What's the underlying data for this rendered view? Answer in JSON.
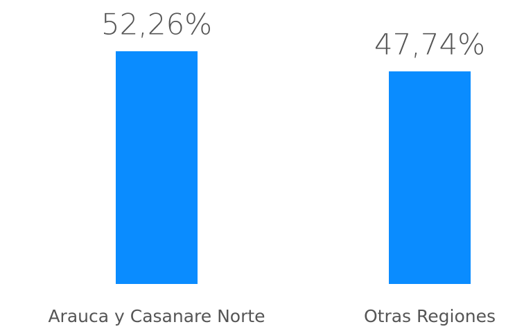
{
  "chart_data": {
    "type": "bar",
    "categories": [
      "Arauca y Casanare Norte",
      "Otras Regiones"
    ],
    "values": [
      52.26,
      47.74
    ],
    "value_labels": [
      "52,26%",
      "47,74%"
    ],
    "color": "#0a8cff"
  }
}
